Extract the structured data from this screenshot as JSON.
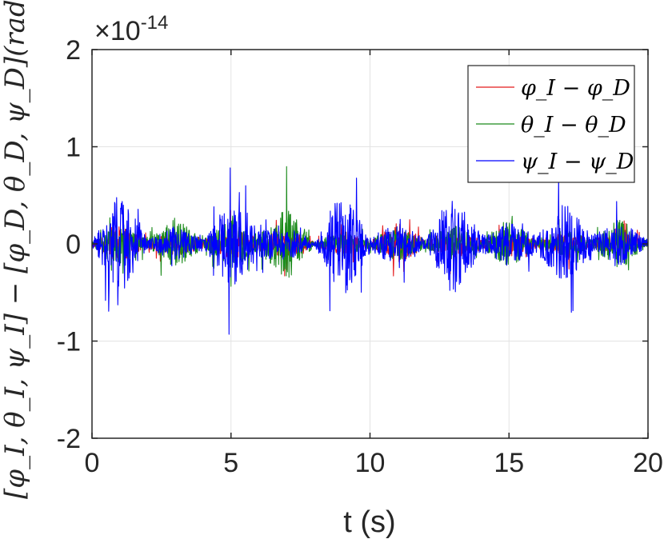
{
  "chart_data": {
    "type": "line",
    "xlabel": "t (s)",
    "ylabel": "[φ_I, θ_I, ψ_I] − [φ_D, θ_D, ψ_D](rad)",
    "xlim": [
      0,
      20
    ],
    "ylim": [
      -2,
      2
    ],
    "y_multiplier_label": "×10",
    "y_multiplier_exponent": "-14",
    "x_ticks": [
      0,
      5,
      10,
      15,
      20
    ],
    "y_ticks": [
      -2,
      -1,
      0,
      1,
      2
    ],
    "grid": true,
    "legend_position": "top-right",
    "series": [
      {
        "name": "φ_I − φ_D",
        "color": "#e41a1c",
        "peak_envelope": [
          [
            0,
            0.05
          ],
          [
            1,
            0.4
          ],
          [
            2,
            0.1
          ],
          [
            3,
            0.3
          ],
          [
            4,
            0.1
          ],
          [
            5,
            0.35
          ],
          [
            6,
            0.15
          ],
          [
            7,
            0.35
          ],
          [
            8,
            0.05
          ],
          [
            9,
            0.25
          ],
          [
            10,
            0.1
          ],
          [
            11,
            0.45
          ],
          [
            12,
            0.1
          ],
          [
            13,
            0.35
          ],
          [
            14,
            0.1
          ],
          [
            15,
            0.3
          ],
          [
            16,
            0.1
          ],
          [
            17,
            0.3
          ],
          [
            18,
            0.1
          ],
          [
            19,
            0.3
          ],
          [
            20,
            0.05
          ]
        ]
      },
      {
        "name": "θ_I − θ_D",
        "color": "#1a8a1a",
        "peak_envelope": [
          [
            0,
            0.05
          ],
          [
            1,
            0.5
          ],
          [
            2,
            0.1
          ],
          [
            3,
            0.6
          ],
          [
            4,
            0.1
          ],
          [
            5,
            0.55
          ],
          [
            6,
            0.2
          ],
          [
            7,
            0.85
          ],
          [
            8,
            0.05
          ],
          [
            9,
            0.3
          ],
          [
            10,
            0.1
          ],
          [
            11,
            0.4
          ],
          [
            12,
            0.1
          ],
          [
            13,
            0.45
          ],
          [
            14,
            0.1
          ],
          [
            15,
            0.55
          ],
          [
            16,
            0.1
          ],
          [
            17,
            0.35
          ],
          [
            18,
            0.1
          ],
          [
            19,
            0.6
          ],
          [
            20,
            0.05
          ]
        ]
      },
      {
        "name": "ψ_I − ψ_D",
        "color": "#0000ff",
        "peak_envelope": [
          [
            0,
            0.05
          ],
          [
            1,
            1.2
          ],
          [
            2,
            0.1
          ],
          [
            3,
            0.4
          ],
          [
            4,
            0.1
          ],
          [
            5,
            1.05
          ],
          [
            6,
            0.3
          ],
          [
            7,
            0.4
          ],
          [
            8,
            0.05
          ],
          [
            9,
            1.25
          ],
          [
            10,
            0.2
          ],
          [
            11,
            0.5
          ],
          [
            12,
            0.1
          ],
          [
            13,
            1.25
          ],
          [
            14,
            0.2
          ],
          [
            15,
            0.5
          ],
          [
            16,
            0.2
          ],
          [
            17,
            0.95
          ],
          [
            18,
            0.2
          ],
          [
            19,
            0.55
          ],
          [
            20,
            0.05
          ]
        ]
      }
    ]
  }
}
